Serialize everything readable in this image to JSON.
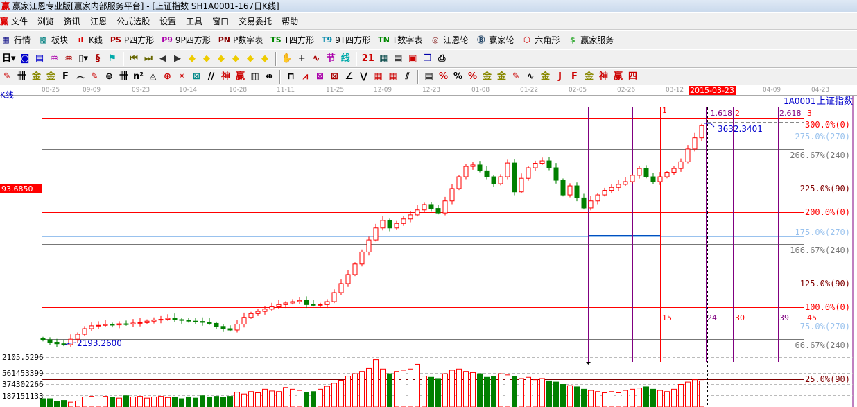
{
  "window": {
    "title": "赢家江恩专业版[赢家内部服务平台] - [上证指数  SH1A0001-167日K线]",
    "logo": "赢"
  },
  "menu": [
    "文件",
    "浏览",
    "资讯",
    "江恩",
    "公式选股",
    "设置",
    "工具",
    "窗口",
    "交易委托",
    "帮助"
  ],
  "toolbar1": [
    {
      "icon": "quote-table-icon",
      "glyph": "▦",
      "color": "#000080",
      "label": "行情"
    },
    {
      "icon": "sector-blocks-icon",
      "glyph": "▩",
      "color": "#008080",
      "label": "板块"
    },
    {
      "icon": "kline-icon",
      "glyph": "ıl",
      "color": "#d00",
      "label": "K线"
    },
    {
      "icon": "ps-icon",
      "glyph": "PS",
      "color": "#a00",
      "label": "P四方形"
    },
    {
      "icon": "p9-icon",
      "glyph": "P9",
      "color": "#a0a",
      "label": "9P四方形"
    },
    {
      "icon": "pn-icon",
      "glyph": "PN",
      "color": "#800",
      "label": "P数字表"
    },
    {
      "icon": "ts-icon",
      "glyph": "TS",
      "color": "#080",
      "label": "T四方形"
    },
    {
      "icon": "t9-icon",
      "glyph": "T9",
      "color": "#08a",
      "label": "9T四方形"
    },
    {
      "icon": "tn-icon",
      "glyph": "TN",
      "color": "#080",
      "label": "T数字表"
    },
    {
      "icon": "gann-wheel-icon",
      "glyph": "◎",
      "color": "#822",
      "label": "江恩轮"
    },
    {
      "icon": "big-wheel-icon",
      "glyph": "Ⓑ",
      "color": "#246",
      "label": "赢家轮"
    },
    {
      "icon": "hexagon-icon",
      "glyph": "⬡",
      "color": "#c00",
      "label": "六角形"
    },
    {
      "icon": "dollar-icon",
      "glyph": "$",
      "color": "#3a3",
      "label": "赢家服务"
    }
  ],
  "toolbar2": [
    {
      "icon": "period-day-dropdown",
      "glyph": "日▾",
      "color": "#000"
    },
    {
      "icon": "chart-style-icon",
      "glyph": "◙",
      "color": "#00c"
    },
    {
      "icon": "notes-icon",
      "glyph": "▤",
      "color": "#00c"
    },
    {
      "icon": "indicator3-icon",
      "glyph": "♒",
      "color": "#a0a"
    },
    {
      "icon": "indicator9-icon",
      "glyph": "♒",
      "color": "#a00"
    },
    {
      "icon": "candle-dropdown",
      "glyph": "▯▾",
      "color": "#000"
    },
    {
      "icon": "pattern-icon",
      "glyph": "§",
      "color": "#a00"
    },
    {
      "icon": "flag-icon",
      "glyph": "⚑",
      "color": "#0aa"
    },
    {
      "icon": "first-icon",
      "glyph": "⏮",
      "color": "#660"
    },
    {
      "icon": "last-icon",
      "glyph": "⏭",
      "color": "#660"
    },
    {
      "icon": "prev-icon",
      "glyph": "◀",
      "color": "#333"
    },
    {
      "icon": "next-icon",
      "glyph": "▶",
      "color": "#333"
    },
    {
      "icon": "diamond-left-icon",
      "glyph": "◆",
      "color": "#ec0"
    },
    {
      "icon": "diamond-right-icon",
      "glyph": "◆",
      "color": "#ec0"
    },
    {
      "icon": "diamond-h-icon",
      "glyph": "◆",
      "color": "#ec0"
    },
    {
      "icon": "diamond-x-icon",
      "glyph": "◆",
      "color": "#ec0"
    },
    {
      "icon": "diamond-all-icon",
      "glyph": "◆",
      "color": "#ec0"
    },
    {
      "icon": "diamond-v-icon",
      "glyph": "◆",
      "color": "#ec0"
    },
    {
      "icon": "hand-icon",
      "glyph": "✋",
      "color": "#000"
    },
    {
      "icon": "crosshair-icon",
      "glyph": "+",
      "color": "#000"
    },
    {
      "icon": "wave-icon",
      "glyph": "∿",
      "color": "#a00"
    },
    {
      "icon": "node-icon",
      "glyph": "节",
      "color": "#a0a"
    },
    {
      "icon": "line-icon",
      "glyph": "线",
      "color": "#0aa"
    },
    {
      "icon": "calendar-icon",
      "glyph": "21",
      "color": "#c00"
    },
    {
      "icon": "calculator-icon",
      "glyph": "▦",
      "color": "#044"
    },
    {
      "icon": "report-icon",
      "glyph": "▤",
      "color": "#000"
    },
    {
      "icon": "save-icon",
      "glyph": "▣",
      "color": "#c00"
    },
    {
      "icon": "window-icon",
      "glyph": "❐",
      "color": "#00a"
    },
    {
      "icon": "print-icon",
      "glyph": "⎙",
      "color": "#000"
    }
  ],
  "toolbar3": [
    {
      "icon": "pen-icon",
      "glyph": "✎",
      "color": "#c00"
    },
    {
      "icon": "lines-icon",
      "glyph": "卌",
      "color": "#000"
    },
    {
      "icon": "gold-icon",
      "glyph": "金",
      "color": "#880"
    },
    {
      "icon": "gold2-icon",
      "glyph": "金",
      "color": "#880"
    },
    {
      "icon": "f-icon",
      "glyph": "F",
      "color": "#000"
    },
    {
      "icon": "spiral-icon",
      "glyph": "෴",
      "color": "#000"
    },
    {
      "icon": "pen2-icon",
      "glyph": "✎",
      "color": "#c00"
    },
    {
      "icon": "circle-grid-icon",
      "glyph": "⊜",
      "color": "#000"
    },
    {
      "icon": "bars-icon",
      "glyph": "卌",
      "color": "#000"
    },
    {
      "icon": "n2-icon",
      "glyph": "n²",
      "color": "#000"
    },
    {
      "icon": "triangle-icon",
      "glyph": "◬",
      "color": "#000"
    },
    {
      "icon": "target-icon",
      "glyph": "⊕",
      "color": "#c00"
    },
    {
      "icon": "star-icon",
      "glyph": "✴",
      "color": "#c00"
    },
    {
      "icon": "box-star-icon",
      "glyph": "⊠",
      "color": "#088"
    },
    {
      "icon": "fan-lines-icon",
      "glyph": "//",
      "color": "#000"
    },
    {
      "icon": "shen-icon",
      "glyph": "神",
      "color": "#c00"
    },
    {
      "icon": "ying-icon",
      "glyph": "赢",
      "color": "#c00"
    },
    {
      "icon": "ruler-icon",
      "glyph": "▥",
      "color": "#000"
    },
    {
      "icon": "width-icon",
      "glyph": "⇹",
      "color": "#000"
    },
    {
      "icon": "box-line-icon",
      "glyph": "⊓",
      "color": "#000"
    },
    {
      "icon": "fan-icon",
      "glyph": "⩘",
      "color": "#c00"
    },
    {
      "icon": "grid-fan-icon",
      "glyph": "⊠",
      "color": "#a0a"
    },
    {
      "icon": "grid-fan2-icon",
      "glyph": "⊠",
      "color": "#a00"
    },
    {
      "icon": "angle-icon",
      "glyph": "∠",
      "color": "#000"
    },
    {
      "icon": "zigzag-icon",
      "glyph": "⋁",
      "color": "#000"
    },
    {
      "icon": "grid-icon",
      "glyph": "▦",
      "color": "#c00"
    },
    {
      "icon": "grid2-icon",
      "glyph": "▦",
      "color": "#c00"
    },
    {
      "icon": "hatch-icon",
      "glyph": "⫽",
      "color": "#000"
    },
    {
      "icon": "table-icon",
      "glyph": "▤",
      "color": "#000"
    },
    {
      "icon": "percent-line-icon",
      "glyph": "%",
      "color": "#c00"
    },
    {
      "icon": "percent-icon",
      "glyph": "%",
      "color": "#000"
    },
    {
      "icon": "percent-levels-icon",
      "glyph": "%",
      "color": "#c00"
    },
    {
      "icon": "gold-circle-icon",
      "glyph": "金",
      "color": "#880"
    },
    {
      "icon": "gold-levels-icon",
      "glyph": "金",
      "color": "#880"
    },
    {
      "icon": "pen-levels-icon",
      "glyph": "✎",
      "color": "#c00"
    },
    {
      "icon": "sine-icon",
      "glyph": "∿",
      "color": "#000"
    },
    {
      "icon": "gold-box-icon",
      "glyph": "金",
      "color": "#880"
    },
    {
      "icon": "j-fan-icon",
      "glyph": "J",
      "color": "#c00"
    },
    {
      "icon": "f-fan-icon",
      "glyph": "F",
      "color": "#c00"
    },
    {
      "icon": "gold-fan-icon",
      "glyph": "金",
      "color": "#880"
    },
    {
      "icon": "shen-fan-icon",
      "glyph": "神",
      "color": "#c00"
    },
    {
      "icon": "ying-fan-icon",
      "glyph": "赢",
      "color": "#c00"
    },
    {
      "icon": "four-fan-icon",
      "glyph": "四",
      "color": "#c00"
    }
  ],
  "date_axis": {
    "ticks": [
      "08-25",
      "09-09",
      "09-23",
      "10-14",
      "10-28",
      "11-11",
      "11-25",
      "12-09",
      "12-23",
      "01-08",
      "01-22",
      "02-05",
      "02-26",
      "03-12",
      "04-09",
      "04-23"
    ],
    "current": "2015-03-23"
  },
  "chart": {
    "panel_label": "K线",
    "symbol": "1A0001",
    "name": "上证指数",
    "crosshair_value": "93.6850",
    "high_label": "3632.3401",
    "low_label": "2193.2600",
    "axis_low": "2105.5296",
    "volume_ticks": [
      "561453399",
      "374302266",
      "187151133"
    ],
    "levels": [
      {
        "label": "300.0%(0)",
        "color": "#ff0000"
      },
      {
        "label": "275.0%(270)",
        "color": "#99c2ee"
      },
      {
        "label": "266.67%(240)",
        "color": "#777777"
      },
      {
        "label": "225.0%(90)",
        "color": "#800000"
      },
      {
        "label": "200.0%(0)",
        "color": "#ff0000"
      },
      {
        "label": "175.0%(270)",
        "color": "#99c2ee"
      },
      {
        "label": "166.67%(240)",
        "color": "#777777"
      },
      {
        "label": "125.0%(90)",
        "color": "#800000"
      },
      {
        "label": "100.0%(0)",
        "color": "#ff0000"
      },
      {
        "label": "75.0%(270)",
        "color": "#99c2ee"
      },
      {
        "label": "66.67%(240)",
        "color": "#777777"
      }
    ],
    "volume_level": "25.0%(90)",
    "fib_labels": [
      "1.618",
      "2",
      "2.618",
      "3"
    ],
    "time_labels": [
      "1",
      "15",
      "24",
      "30",
      "39",
      "45"
    ]
  },
  "chart_data": {
    "type": "candlestick",
    "closes": [
      2216,
      2200,
      2190,
      2184,
      2220,
      2253,
      2290,
      2309,
      2312,
      2318,
      2315,
      2322,
      2320,
      2327,
      2330,
      2340,
      2348,
      2352,
      2359,
      2350,
      2345,
      2340,
      2338,
      2332,
      2325,
      2305,
      2290,
      2281,
      2320,
      2365,
      2390,
      2405,
      2420,
      2435,
      2450,
      2461,
      2470,
      2478,
      2450,
      2447,
      2450,
      2470,
      2530,
      2590,
      2650,
      2720,
      2800,
      2880,
      2960,
      3010,
      2960,
      2990,
      3020,
      3047,
      3080,
      3116,
      3090,
      3060,
      3140,
      3222,
      3300,
      3369,
      3379,
      3340,
      3300,
      3254,
      3300,
      3392,
      3200,
      3290,
      3360,
      3390,
      3406,
      3360,
      3277,
      3180,
      3240,
      3160,
      3093,
      3140,
      3180,
      3210,
      3230,
      3250,
      3268,
      3310,
      3355,
      3300,
      3268,
      3300,
      3330,
      3355,
      3400,
      3485,
      3560,
      3640
    ],
    "volumes": [
      140,
      140,
      90,
      110,
      80,
      100,
      170,
      180,
      170,
      180,
      160,
      150,
      190,
      170,
      180,
      150,
      170,
      180,
      160,
      160,
      140,
      170,
      150,
      190,
      170,
      180,
      160,
      180,
      250,
      220,
      260,
      240,
      300,
      270,
      260,
      330,
      300,
      280,
      240,
      260,
      300,
      350,
      400,
      450,
      520,
      560,
      600,
      650,
      800,
      640,
      560,
      600,
      620,
      640,
      720,
      520,
      500,
      480,
      560,
      620,
      640,
      600,
      580,
      560,
      500,
      520,
      560,
      540,
      520,
      480,
      500,
      460,
      480,
      440,
      420,
      380,
      360,
      340,
      300,
      280,
      260,
      240,
      260,
      240,
      280,
      300,
      320,
      340,
      300,
      280,
      260,
      300,
      380,
      420,
      460,
      440
    ],
    "price_range": [
      2105.5296,
      3700
    ]
  }
}
